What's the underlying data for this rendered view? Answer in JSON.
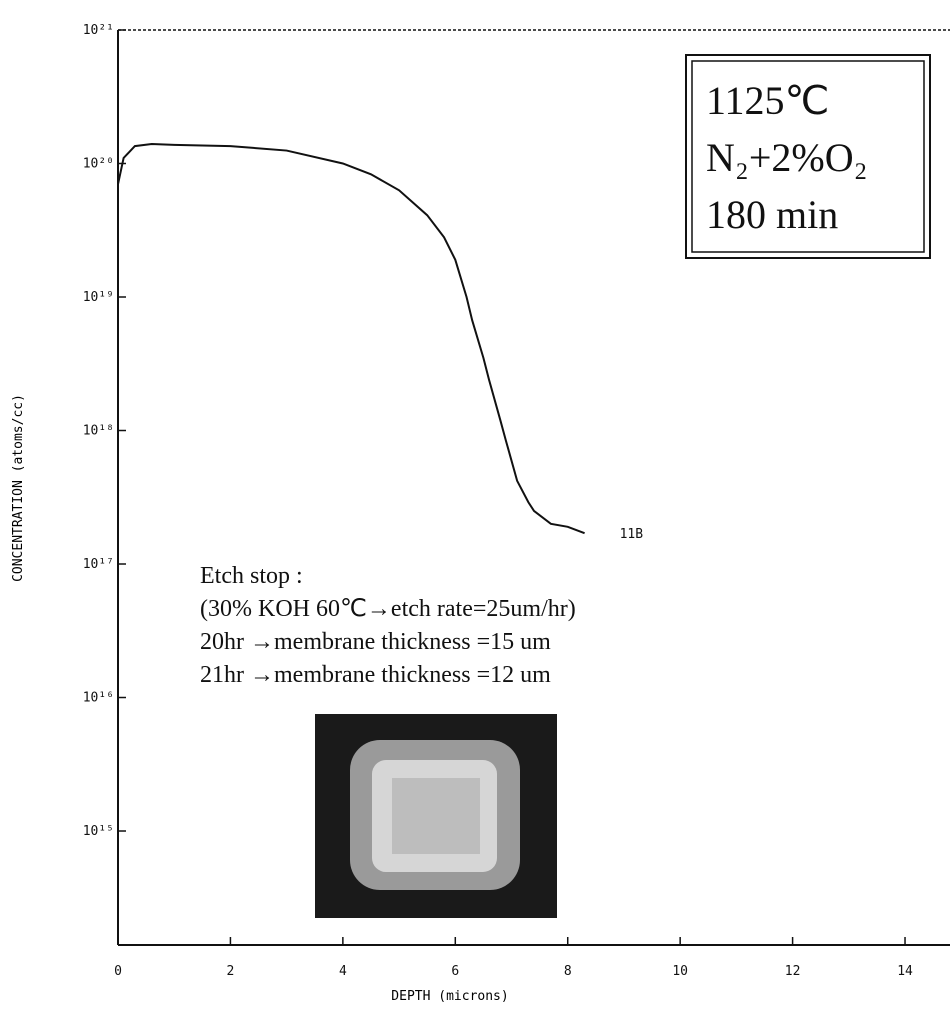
{
  "chart_data": {
    "type": "line",
    "log_scale_y": true,
    "x_label": "DEPTH (microns)",
    "y_label": "CONCENTRATION (atoms/cc)",
    "xlim": [
      0,
      14.8
    ],
    "xticks": [
      0,
      2,
      4,
      6,
      8,
      10,
      12,
      14
    ],
    "ylim": [
      140000000000000.0,
      1e+21
    ],
    "yticks": [
      {
        "value": 1000000000000000.0,
        "label": "10¹⁵"
      },
      {
        "value": 1e+16,
        "label": "10¹⁶"
      },
      {
        "value": 1e+17,
        "label": "10¹⁷"
      },
      {
        "value": 1e+18,
        "label": "10¹⁸"
      },
      {
        "value": 1e+19,
        "label": "10¹⁹"
      },
      {
        "value": 1e+20,
        "label": "10²⁰"
      },
      {
        "value": 1e+21,
        "label": "10²¹"
      }
    ],
    "series": [
      {
        "name": "11B",
        "color": "#111111",
        "x": [
          0,
          0.1,
          0.3,
          0.6,
          1,
          2,
          3,
          4,
          4.5,
          5,
          5.5,
          5.8,
          6,
          6.2,
          6.3,
          6.5,
          6.6,
          6.8,
          6.9,
          7.1,
          7.3,
          7.4,
          7.7,
          8,
          8.3
        ],
        "values": [
          7e+19,
          1.1e+20,
          1.35e+20,
          1.4e+20,
          1.38e+20,
          1.35e+20,
          1.25e+20,
          1e+20,
          8.3e+19,
          6.3e+19,
          4.1e+19,
          2.8e+19,
          1.9e+19,
          1e+19,
          6.7e+18,
          3.5e+18,
          2.4e+18,
          1.2e+18,
          8.4e+17,
          4.2e+17,
          2.9e+17,
          2.5e+17,
          2e+17,
          1.9e+17,
          1.7e+17
        ]
      }
    ],
    "annotations": {
      "conditions": [
        "1125℃",
        "N₂+2%O₂",
        "180 min"
      ],
      "etch": [
        "Etch stop :",
        "(30% KOH 60℃→etch rate=25um/hr)",
        "20hr →membrane thickness =15 um",
        "21hr →membrane thickness =12 um"
      ]
    }
  }
}
